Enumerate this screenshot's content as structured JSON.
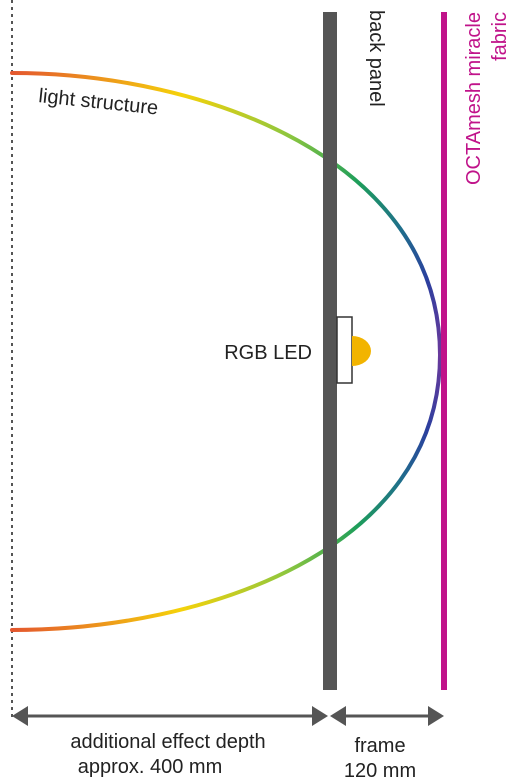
{
  "labels": {
    "light_structure": "light structure",
    "back_panel": "back panel",
    "fabric_line1": "OCTAmesh miracle",
    "fabric_line2": "fabric",
    "rgb_led": "RGB LED",
    "depth_line1": "additional effect depth",
    "depth_line2": "approx. 400 mm",
    "frame_line1": "frame",
    "frame_line2": "120 mm"
  },
  "colors": {
    "panel": "#555555",
    "fabric": "#c0138a",
    "led": "#f2b400",
    "arrow": "#555555",
    "dotted_line": "#555555",
    "spectrum": [
      "#e4572e",
      "#f5d20a",
      "#8cc63f",
      "#1e9e5a",
      "#1f6f8b",
      "#2b3f9e",
      "#6a3a9c"
    ]
  }
}
